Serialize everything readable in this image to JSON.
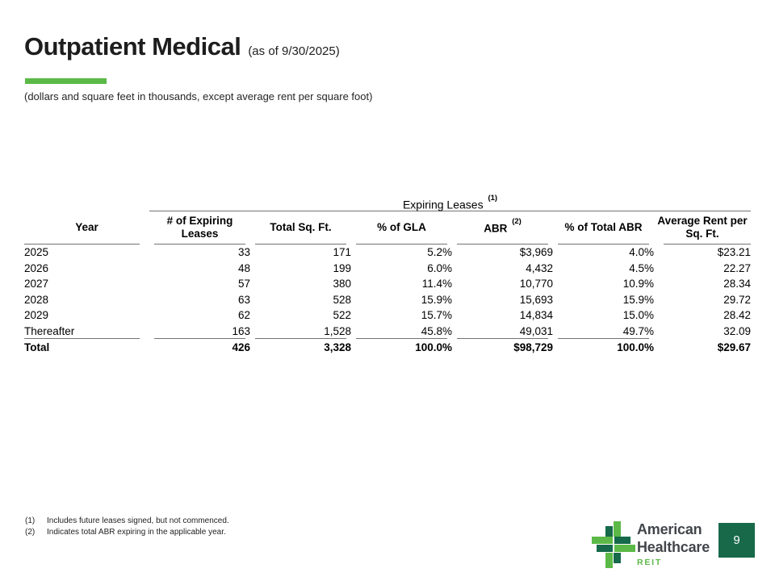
{
  "page": {
    "number": "9"
  },
  "header": {
    "title": "Outpatient Medical",
    "as_of": "(as of 9/30/2025)",
    "units_note": "(dollars and square feet in thousands, except average rent per square foot)"
  },
  "table": {
    "group_header": {
      "label": "Expiring Leases",
      "sup": "(1)"
    },
    "columns": [
      {
        "label": "Year"
      },
      {
        "label": "# of Expiring Leases"
      },
      {
        "label": "Total Sq. Ft."
      },
      {
        "label": "% of GLA"
      },
      {
        "label": "ABR",
        "sup": "(2)"
      },
      {
        "label": "% of Total ABR"
      },
      {
        "label": "Average Rent per Sq. Ft."
      }
    ],
    "rows": [
      {
        "cells": [
          "2025",
          "33",
          "171",
          "5.2%",
          "$3,969",
          "4.0%",
          "$23.21"
        ]
      },
      {
        "cells": [
          "2026",
          "48",
          "199",
          "6.0%",
          "4,432",
          "4.5%",
          "22.27"
        ]
      },
      {
        "cells": [
          "2027",
          "57",
          "380",
          "11.4%",
          "10,770",
          "10.9%",
          "28.34"
        ]
      },
      {
        "cells": [
          "2028",
          "63",
          "528",
          "15.9%",
          "15,693",
          "15.9%",
          "29.72"
        ]
      },
      {
        "cells": [
          "2029",
          "62",
          "522",
          "15.7%",
          "14,834",
          "15.0%",
          "28.42"
        ]
      },
      {
        "cells": [
          "Thereafter",
          "163",
          "1,528",
          "45.8%",
          "49,031",
          "49.7%",
          "32.09"
        ]
      }
    ],
    "total": {
      "cells": [
        "Total",
        "426",
        "3,328",
        "100.0%",
        "$98,729",
        "100.0%",
        "$29.67"
      ]
    }
  },
  "footnotes": [
    {
      "marker": "(1)",
      "text": "Includes future leases signed, but not commenced."
    },
    {
      "marker": "(2)",
      "text": "Indicates total ABR expiring in the applicable year."
    }
  ],
  "logo": {
    "line1": "American",
    "line2": "Healthcare",
    "sub": "REIT"
  },
  "colors": {
    "accent": "#5bb947",
    "rule": "#737373",
    "title": "#1d1d1d",
    "logo_dark": "#16694a",
    "logo_light": "#5cb947",
    "logo_text": "#42464b",
    "page_box": "#17694a"
  }
}
